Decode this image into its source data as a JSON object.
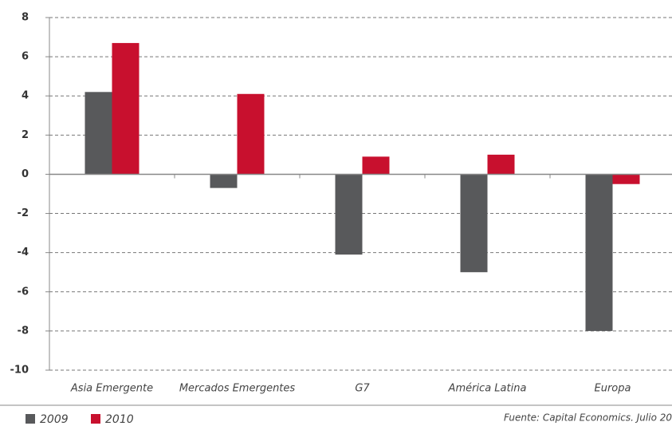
{
  "chart_data": {
    "type": "bar",
    "categories": [
      "Asia Emergente",
      "Mercados Emergentes",
      "G7",
      "América Latina",
      "Europa"
    ],
    "series": [
      {
        "name": "2009",
        "color": "#58595b",
        "values": [
          4.2,
          -0.7,
          -4.1,
          -5.0,
          -8.0
        ]
      },
      {
        "name": "2010",
        "color": "#c8102e",
        "values": [
          6.7,
          4.1,
          0.9,
          1.0,
          -0.5
        ]
      }
    ],
    "ylim": [
      -10,
      8
    ],
    "yticks": [
      -10,
      -8,
      -6,
      -4,
      -2,
      0,
      2,
      4,
      6,
      8
    ],
    "grid": true,
    "source": "Fuente: Capital Economics. Julio 20"
  }
}
